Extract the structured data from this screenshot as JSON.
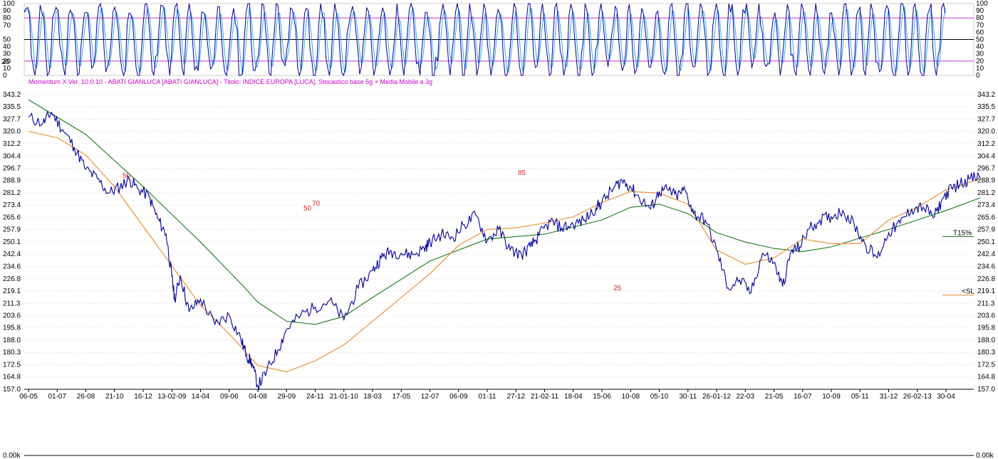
{
  "header": {
    "info_text": "Momentum X  Ver. 10.0.10  -  ABATI GIANLUCA  [ABATI GIANLUCA] - Titolo: INDICE EUROPA  [LUCA],   Stocastico base 5g + Media Mobile a 3g"
  },
  "colors": {
    "price": "#000099",
    "ma_short": "#e8892a",
    "ma_long": "#1a7a1a",
    "stoch": "#000099",
    "stoch_signal": "#33aaee",
    "stoch_bands": "#cc33cc",
    "info_text": "#cc00cc",
    "red_label": "#dd2222",
    "grid": "#dddddd"
  },
  "chart_data": [
    {
      "type": "line",
      "panel": "stochastic",
      "ylim": [
        0,
        100
      ],
      "y_ticks_left": [
        "100",
        "90",
        "80",
        "70",
        "50",
        "40",
        "30",
        "20",
        "10",
        "0"
      ],
      "y_ticks_right": [
        "100",
        "90",
        "80",
        "70",
        "60",
        "50",
        "40",
        "30",
        "20",
        "10",
        "0"
      ],
      "bands": [
        20,
        50,
        80
      ],
      "marker": "20",
      "series": [
        {
          "role": "stochastic",
          "values": []
        },
        {
          "role": "signal",
          "values": []
        }
      ]
    },
    {
      "type": "line",
      "panel": "price",
      "ylim": [
        157.0,
        343.2
      ],
      "y_ticks": [
        "343.2",
        "335.5",
        "327.7",
        "320.0",
        "312.2",
        "304.4",
        "296.7",
        "288.9",
        "281.2",
        "273.4",
        "265.6",
        "257.9",
        "250.1",
        "242.4",
        "234.6",
        "226.8",
        "219.1",
        "211.3",
        "203.6",
        "195.8",
        "188.0",
        "180.3",
        "172.5",
        "164.8",
        "157.0"
      ],
      "x_ticks": [
        {
          "label": "06-05",
          "red": false
        },
        {
          "label": "01-07",
          "red": false
        },
        {
          "label": "26-08",
          "red": false
        },
        {
          "label": "21-10",
          "red": false
        },
        {
          "label": "16-12",
          "red": false
        },
        {
          "label": "13-02-09",
          "red": true
        },
        {
          "label": "14-04",
          "red": false
        },
        {
          "label": "09-06",
          "red": false
        },
        {
          "label": "04-08",
          "red": false
        },
        {
          "label": "29-09",
          "red": false
        },
        {
          "label": "24-11",
          "red": false
        },
        {
          "label": "21-01-10",
          "red": true
        },
        {
          "label": "18-03",
          "red": false
        },
        {
          "label": "17-05",
          "red": false
        },
        {
          "label": "12-07",
          "red": false
        },
        {
          "label": "06-09",
          "red": false
        },
        {
          "label": "01-11",
          "red": false
        },
        {
          "label": "27-12",
          "red": false
        },
        {
          "label": "21-02-11",
          "red": true
        },
        {
          "label": "18-04",
          "red": false
        },
        {
          "label": "15-06",
          "red": false
        },
        {
          "label": "10-08",
          "red": false
        },
        {
          "label": "05-10",
          "red": false
        },
        {
          "label": "30-11",
          "red": false
        },
        {
          "label": "26-01-12",
          "red": true
        },
        {
          "label": "22-03",
          "red": false
        },
        {
          "label": "21-05",
          "red": false
        },
        {
          "label": "16-07",
          "red": false
        },
        {
          "label": "10-09",
          "red": false
        },
        {
          "label": "05-11",
          "red": false
        },
        {
          "label": "31-12",
          "red": false
        },
        {
          "label": "26-02-13",
          "red": true
        },
        {
          "label": "30-04",
          "red": false
        }
      ],
      "series": [
        {
          "role": "price",
          "x": [
            0,
            0.5,
            0.8,
            1.2,
            1.6,
            2.0,
            2.4,
            2.8,
            3.2,
            3.5,
            3.8,
            4.2,
            4.5,
            4.8,
            5.0,
            5.1,
            5.3,
            5.6,
            6.0,
            6.5,
            7.0,
            7.4,
            7.6,
            7.8,
            8.0,
            8.3,
            8.7,
            9.0,
            9.5,
            10.0,
            10.5,
            11.0,
            11.5,
            12.0,
            12.3,
            12.6,
            13.0,
            13.4,
            13.8,
            14.0,
            14.4,
            14.8,
            15.2,
            15.6,
            16.0,
            16.4,
            16.8,
            17.2,
            17.5,
            17.8,
            18.2,
            18.6,
            19.0,
            19.4,
            19.8,
            20.0,
            20.4,
            20.7,
            21.0,
            21.3,
            21.7,
            22.0,
            22.3,
            22.6,
            22.9,
            23.2,
            23.6,
            24.0,
            24.4,
            24.8,
            25.2,
            25.6,
            26.0,
            26.3,
            26.6,
            26.9,
            27.2,
            27.6,
            28.0,
            28.4,
            28.8,
            29.2,
            29.6,
            30.0,
            30.4,
            30.8,
            31.2,
            31.6,
            31.9,
            32.2,
            32.5,
            32.8,
            33.2
          ],
          "values": [
            329,
            325,
            332,
            321,
            310,
            296,
            290,
            281,
            285,
            290,
            284,
            279,
            265,
            255,
            228,
            214,
            229,
            206,
            214,
            198,
            204,
            189,
            179,
            173,
            159,
            168,
            182,
            195,
            204,
            209,
            213,
            201,
            221,
            232,
            240,
            244,
            243,
            242,
            246,
            250,
            255,
            253,
            261,
            267,
            251,
            258,
            245,
            242,
            247,
            254,
            263,
            259,
            261,
            264,
            272,
            275,
            284,
            289,
            285,
            278,
            271,
            282,
            283,
            279,
            283,
            268,
            264,
            245,
            221,
            226,
            218,
            243,
            237,
            222,
            244,
            247,
            258,
            264,
            266,
            270,
            261,
            248,
            240,
            256,
            262,
            271,
            272,
            266,
            278,
            284,
            287,
            290,
            291
          ]
        },
        {
          "role": "ma_short",
          "x": [
            0,
            1,
            2,
            3,
            4,
            5,
            6,
            7,
            8,
            9,
            10,
            11,
            12,
            13,
            14,
            15,
            16,
            17,
            18,
            19,
            20,
            21,
            22,
            23,
            24,
            25,
            26,
            27,
            28,
            29,
            30,
            31,
            32,
            33.2
          ],
          "values": [
            320,
            316,
            305,
            285,
            260,
            235,
            210,
            192,
            172,
            168,
            175,
            185,
            200,
            215,
            230,
            248,
            258,
            259,
            262,
            266,
            275,
            282,
            281,
            274,
            245,
            236,
            240,
            252,
            249,
            249,
            264,
            272,
            283,
            290
          ]
        },
        {
          "role": "ma_long",
          "x": [
            0,
            2,
            4,
            6,
            7.5,
            8,
            9,
            10,
            11,
            12,
            14,
            16,
            18,
            20,
            21,
            22,
            23,
            24,
            25,
            26,
            27,
            28,
            30,
            31,
            32,
            33.2
          ],
          "values": [
            340,
            318,
            285,
            250,
            222,
            212,
            200,
            198,
            203,
            215,
            238,
            252,
            255,
            264,
            272,
            274,
            268,
            256,
            250,
            246,
            244,
            247,
            258,
            264,
            270,
            278
          ]
        }
      ],
      "annotations": [
        "50",
        "50",
        "70",
        "85",
        "25"
      ],
      "right_markers": [
        {
          "label": "T15%",
          "value": 253.5
        },
        {
          "label": "<SL",
          "value": 216.5
        }
      ]
    },
    {
      "type": "line",
      "panel": "volume",
      "y_tick_left": "0.00k",
      "y_tick_right": "0.00k",
      "series": []
    }
  ]
}
